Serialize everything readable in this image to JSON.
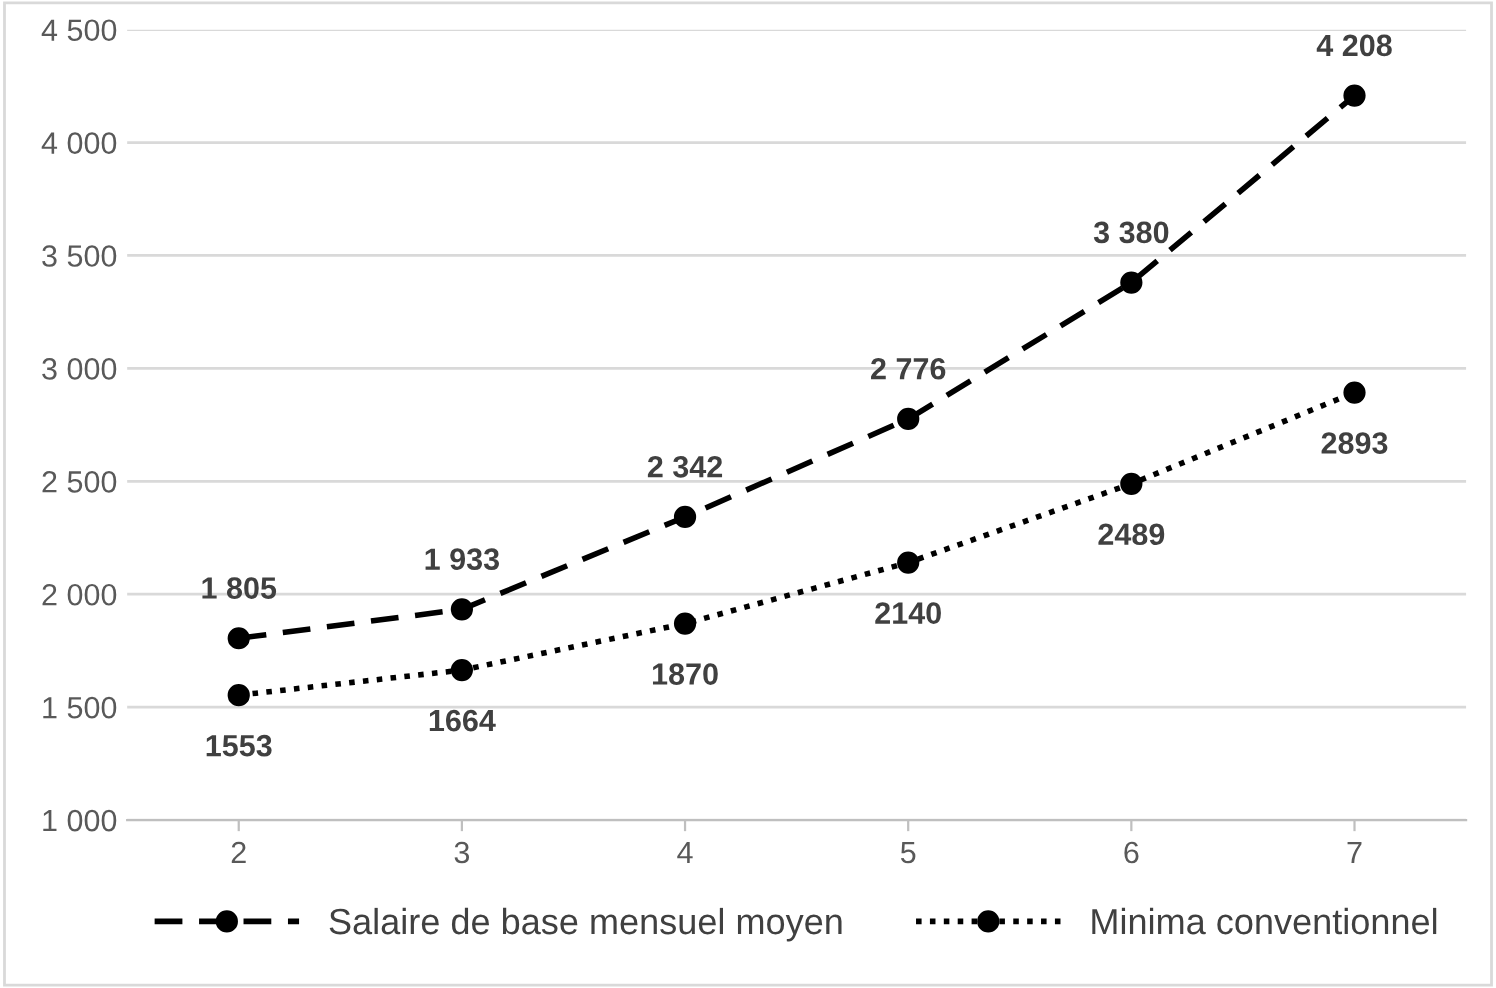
{
  "chart_data": {
    "type": "line",
    "categories": [
      "2",
      "3",
      "4",
      "5",
      "6",
      "7"
    ],
    "series": [
      {
        "name": "Salaire de base mensuel moyen",
        "color": "#000000",
        "line_style": "dashed",
        "values": [
          1805,
          1933,
          2342,
          2776,
          3380,
          4208
        ],
        "value_labels": [
          "1 805",
          "1 933",
          "2 342",
          "2 776",
          "3 380",
          "4 208"
        ]
      },
      {
        "name": "Minima conventionnel",
        "color": "#000000",
        "line_style": "dotted",
        "values": [
          1553,
          1664,
          1870,
          2140,
          2489,
          2893
        ],
        "value_labels": [
          "1553",
          "1664",
          "1870",
          "2140",
          "2489",
          "2893"
        ]
      }
    ],
    "ylim": [
      1000,
      4500
    ],
    "yticks": [
      {
        "value": 1000,
        "label": "1 000"
      },
      {
        "value": 1500,
        "label": "1 500"
      },
      {
        "value": 2000,
        "label": "2 000"
      },
      {
        "value": 2500,
        "label": "2 500"
      },
      {
        "value": 3000,
        "label": "3 000"
      },
      {
        "value": 3500,
        "label": "3 500"
      },
      {
        "value": 4000,
        "label": "4 000"
      },
      {
        "value": 4500,
        "label": "4 500"
      }
    ],
    "grid": "y",
    "legend": "bottom",
    "marker": "circle"
  }
}
